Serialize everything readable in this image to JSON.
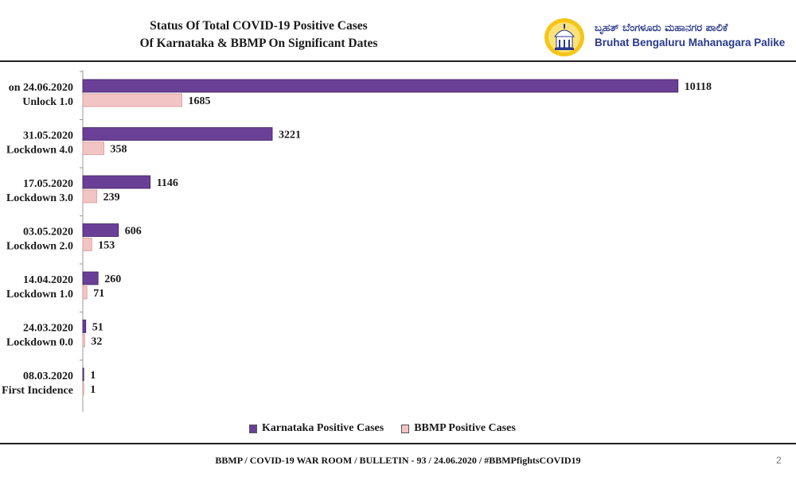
{
  "header": {
    "title_line1": "Status Of Total COVID-19 Positive Cases",
    "title_line2": "Of Karnataka & BBMP On Significant Dates",
    "logo_kannada": "ಬೃಹತ್ ಬೆಂಗಳೂರು ಮಹಾನಗರ ಪಾಲಿಕೆ",
    "logo_english": "Bruhat Bengaluru Mahanagara Palike"
  },
  "colors": {
    "karnataka": "#6a3f96",
    "bbmp": "#f2c4c4",
    "logo_yellow": "#f5c518",
    "logo_blue": "#2a3a8c"
  },
  "chart_data": {
    "type": "bar",
    "orientation": "horizontal",
    "categories": [
      [
        "on 24.06.2020",
        "Unlock 1.0"
      ],
      [
        "31.05.2020",
        "Lockdown 4.0"
      ],
      [
        "17.05.2020",
        "Lockdown 3.0"
      ],
      [
        "03.05.2020",
        "Lockdown 2.0"
      ],
      [
        "14.04.2020",
        "Lockdown 1.0"
      ],
      [
        "24.03.2020",
        "Lockdown 0.0"
      ],
      [
        "08.03.2020",
        "First Incidence"
      ]
    ],
    "series": [
      {
        "name": "Karnataka Positive Cases",
        "values": [
          10118,
          3221,
          1146,
          606,
          260,
          51,
          1
        ]
      },
      {
        "name": "BBMP Positive Cases",
        "values": [
          1685,
          358,
          239,
          153,
          71,
          32,
          1
        ]
      }
    ],
    "xlim": [
      0,
      10500
    ],
    "legend_position": "bottom",
    "grid": false
  },
  "footer": {
    "text": "BBMP / COVID-19 WAR ROOM / BULLETIN - 93 / 24.06.2020 / #BBMPfightsCOVID19",
    "page_number": "2"
  }
}
